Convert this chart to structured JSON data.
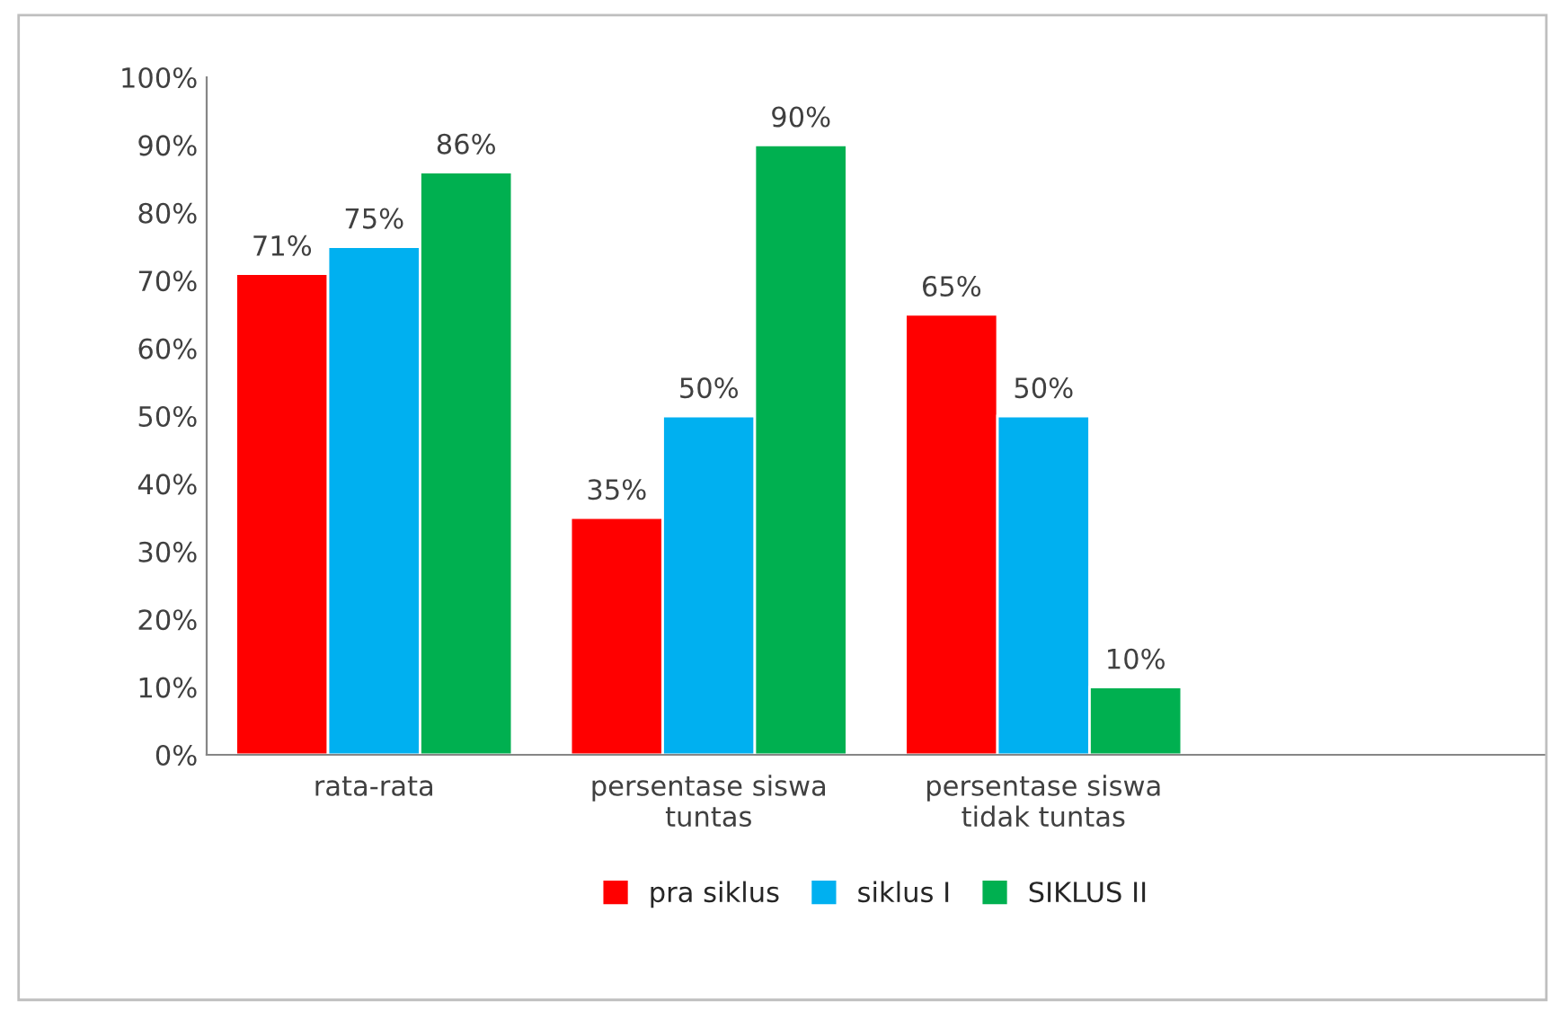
{
  "chart_data": {
    "type": "bar",
    "categories": [
      "rata-rata",
      "persentase siswa\ntuntas",
      "persentase siswa\ntidak tuntas",
      null
    ],
    "series": [
      {
        "name": "pra siklus",
        "color": "#ff0000",
        "values": [
          71,
          35,
          65,
          null
        ],
        "value_labels": [
          "71%",
          "35%",
          "65%",
          null
        ]
      },
      {
        "name": "siklus I",
        "color": "#00b0f0",
        "values": [
          75,
          50,
          50,
          null
        ],
        "value_labels": [
          "75%",
          "50%",
          "50%",
          null
        ]
      },
      {
        "name": "SIKLUS II",
        "color": "#00b050",
        "values": [
          86,
          90,
          10,
          null
        ],
        "value_labels": [
          "86%",
          "90%",
          "10%",
          null
        ]
      }
    ],
    "ylim": [
      0,
      100
    ],
    "yticks": [
      {
        "value": 0,
        "label": "0%"
      },
      {
        "value": 10,
        "label": "10%"
      },
      {
        "value": 20,
        "label": "20%"
      },
      {
        "value": 30,
        "label": "30%"
      },
      {
        "value": 40,
        "label": "40%"
      },
      {
        "value": 50,
        "label": "50%"
      },
      {
        "value": 60,
        "label": "60%"
      },
      {
        "value": 70,
        "label": "70%"
      },
      {
        "value": 80,
        "label": "80%"
      },
      {
        "value": 90,
        "label": "90%"
      },
      {
        "value": 100,
        "label": "100%"
      }
    ],
    "grid": false,
    "legend": "bottom"
  }
}
